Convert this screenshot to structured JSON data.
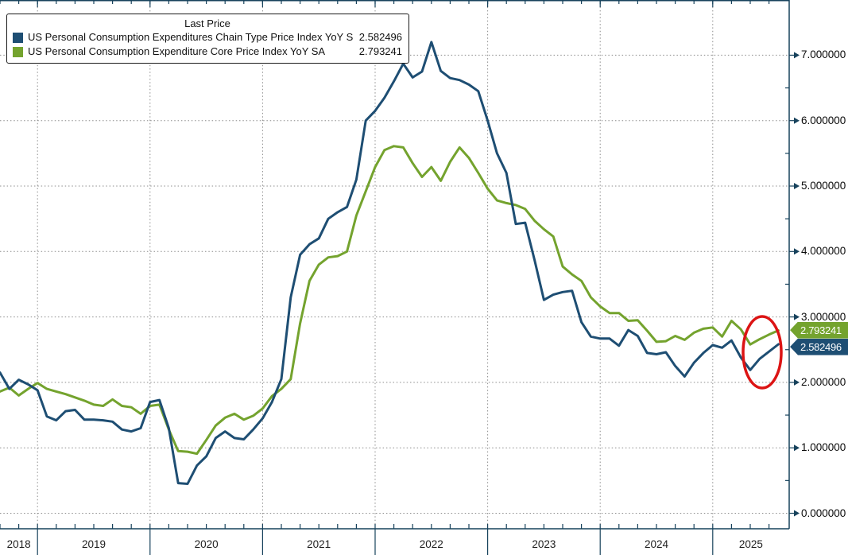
{
  "legend": {
    "title": "Last Price",
    "items": [
      {
        "label": "US Personal Consumption Expenditures Chain Type Price Index YoY SA",
        "value": "2.582496",
        "color": "#1e4e73"
      },
      {
        "label": "US Personal Consumption Expenditure Core Price Index YoY SA",
        "value": "2.793241",
        "color": "#74a32e"
      }
    ]
  },
  "badges": [
    {
      "value": "2.793241",
      "color": "#74a32e"
    },
    {
      "value": "2.582496",
      "color": "#1e4e73"
    }
  ],
  "chart_data": {
    "type": "line",
    "title": "",
    "xlabel": "",
    "ylabel": "",
    "x_start": "2018-09",
    "x_interval": "monthly",
    "x_tick_labels": [
      "2018",
      "2019",
      "2020",
      "2021",
      "2022",
      "2023",
      "2024",
      "2025"
    ],
    "y_tick_labels": [
      "0.000000",
      "1.000000",
      "2.000000",
      "3.000000",
      "4.000000",
      "5.000000",
      "6.000000",
      "7.000000"
    ],
    "ylim": [
      0,
      7.85
    ],
    "grid": "dotted",
    "legend_position": "top-left",
    "series": [
      {
        "name": "US Personal Consumption Expenditures Chain Type Price Index YoY SA",
        "color": "#1e4e73",
        "last_price": 2.582496,
        "values": [
          2.15,
          1.9,
          2.04,
          1.97,
          1.88,
          1.48,
          1.42,
          1.56,
          1.58,
          1.43,
          1.43,
          1.42,
          1.4,
          1.28,
          1.25,
          1.3,
          1.7,
          1.73,
          1.3,
          0.46,
          0.45,
          0.73,
          0.87,
          1.15,
          1.25,
          1.15,
          1.13,
          1.28,
          1.45,
          1.7,
          2.05,
          3.3,
          3.95,
          4.11,
          4.2,
          4.5,
          4.6,
          4.68,
          5.1,
          6.0,
          6.15,
          6.35,
          6.6,
          6.87,
          6.66,
          6.75,
          7.2,
          6.76,
          6.65,
          6.62,
          6.55,
          6.45,
          6.0,
          5.5,
          5.2,
          4.42,
          4.44,
          3.87,
          3.26,
          3.34,
          3.38,
          3.4,
          2.92,
          2.7,
          2.67,
          2.67,
          2.56,
          2.8,
          2.71,
          2.45,
          2.43,
          2.46,
          2.25,
          2.09,
          2.3,
          2.45,
          2.57,
          2.53,
          2.64,
          2.38,
          2.19,
          2.36,
          2.47,
          2.582496
        ]
      },
      {
        "name": "US Personal Consumption Expenditure Core Price Index YoY SA",
        "color": "#74a32e",
        "last_price": 2.793241,
        "values": [
          1.86,
          1.92,
          1.8,
          1.9,
          1.99,
          1.9,
          1.86,
          1.82,
          1.77,
          1.72,
          1.66,
          1.64,
          1.74,
          1.64,
          1.62,
          1.52,
          1.64,
          1.66,
          1.28,
          0.95,
          0.94,
          0.91,
          1.12,
          1.34,
          1.46,
          1.52,
          1.43,
          1.49,
          1.6,
          1.79,
          1.9,
          2.05,
          2.9,
          3.55,
          3.8,
          3.91,
          3.93,
          4.0,
          4.55,
          4.92,
          5.29,
          5.55,
          5.61,
          5.59,
          5.35,
          5.14,
          5.29,
          5.08,
          5.37,
          5.59,
          5.43,
          5.2,
          4.96,
          4.78,
          4.74,
          4.71,
          4.65,
          4.47,
          4.34,
          4.23,
          3.77,
          3.65,
          3.55,
          3.3,
          3.16,
          3.06,
          3.06,
          2.94,
          2.95,
          2.79,
          2.62,
          2.63,
          2.71,
          2.65,
          2.76,
          2.82,
          2.84,
          2.7,
          2.94,
          2.81,
          2.58,
          2.66,
          2.73,
          2.793241
        ]
      }
    ],
    "annotation": {
      "type": "ellipse-highlight",
      "color": "#dc1414",
      "note": "red circle around the latest rebound in both series"
    }
  }
}
